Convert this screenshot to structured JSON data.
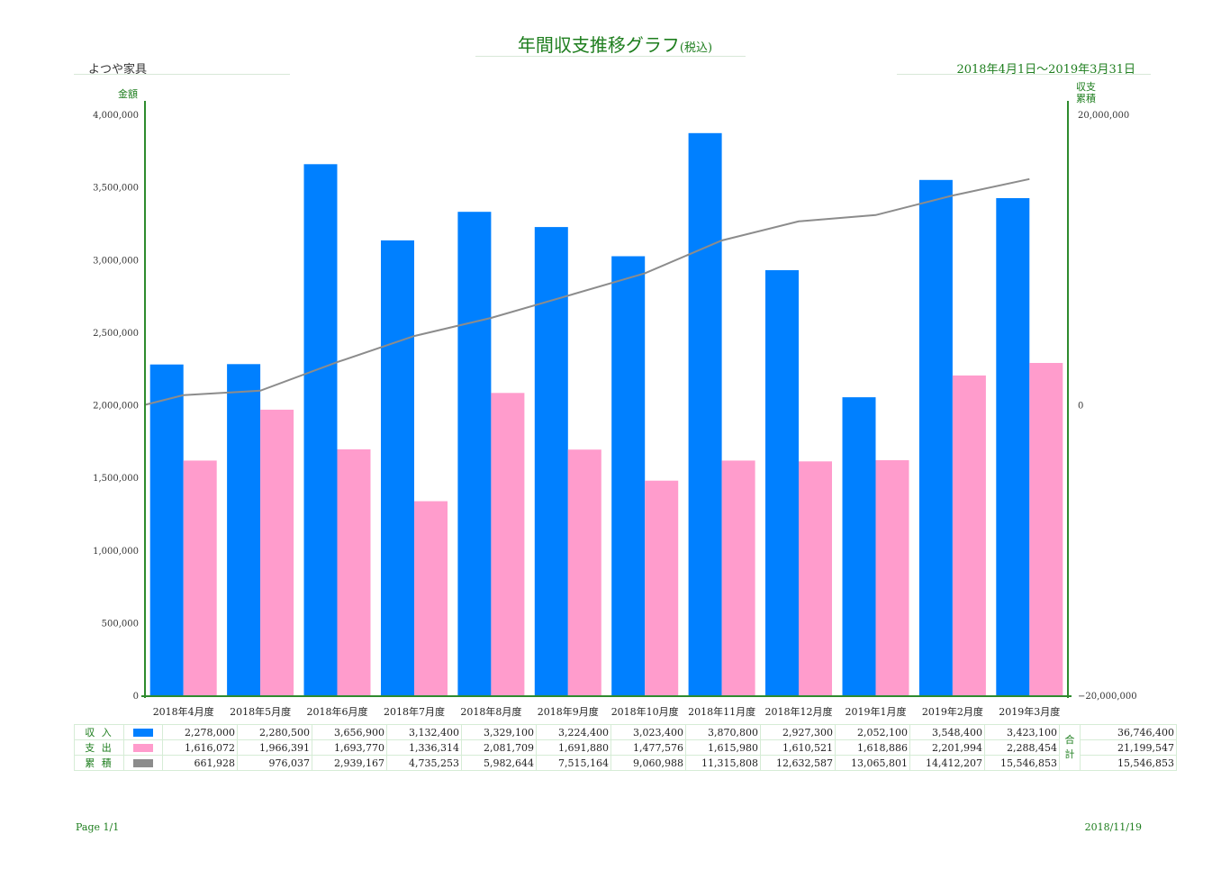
{
  "header": {
    "title": "年間収支推移グラフ",
    "title_sub": "(税込)",
    "company": "よつや家具",
    "period": "2018年4月1日～2019年3月31日"
  },
  "footer": {
    "page": "Page 1/1",
    "date": "2018/11/19"
  },
  "colors": {
    "income": "#0080ff",
    "expense": "#ff9ccc",
    "cumulative": "#8c8c8c",
    "axis": "#2e8b2e"
  },
  "chart_data": {
    "type": "bar",
    "title": "年間収支推移グラフ",
    "ylabel": "金額",
    "y2label": [
      "収支",
      "累積"
    ],
    "ylim": [
      0,
      4000000
    ],
    "y2lim": [
      -20000000,
      20000000
    ],
    "yticks": [
      "0",
      "500,000",
      "1,000,000",
      "1,500,000",
      "2,000,000",
      "2,500,000",
      "3,000,000",
      "3,500,000",
      "4,000,000"
    ],
    "y2ticks": [
      "−20,000,000",
      "0",
      "20,000,000"
    ],
    "categories": [
      "2018年4月度",
      "2018年5月度",
      "2018年6月度",
      "2018年7月度",
      "2018年8月度",
      "2018年9月度",
      "2018年10月度",
      "2018年11月度",
      "2018年12月度",
      "2019年1月度",
      "2019年2月度",
      "2019年3月度"
    ],
    "series": [
      {
        "name": "収入",
        "values": [
          2278000,
          2280500,
          3656900,
          3132400,
          3329100,
          3224400,
          3023400,
          3870800,
          2927300,
          2052100,
          3548400,
          3423100
        ]
      },
      {
        "name": "支出",
        "values": [
          1616072,
          1966391,
          1693770,
          1336314,
          2081709,
          1691880,
          1477576,
          1615980,
          1610521,
          1618886,
          2201994,
          2288454
        ]
      },
      {
        "name": "累積",
        "values": [
          661928,
          976037,
          2939167,
          4735253,
          5982644,
          7515164,
          9060988,
          11315808,
          12632587,
          13065801,
          14412207,
          15546853
        ]
      }
    ],
    "legend": "bottom-table",
    "grid": false
  },
  "table": {
    "rows": [
      {
        "label": "収 入",
        "color": "#0080ff",
        "cells": [
          "2,278,000",
          "2,280,500",
          "3,656,900",
          "3,132,400",
          "3,329,100",
          "3,224,400",
          "3,023,400",
          "3,870,800",
          "2,927,300",
          "2,052,100",
          "3,548,400",
          "3,423,100"
        ],
        "total": "36,746,400"
      },
      {
        "label": "支 出",
        "color": "#ff9ccc",
        "cells": [
          "1,616,072",
          "1,966,391",
          "1,693,770",
          "1,336,314",
          "2,081,709",
          "1,691,880",
          "1,477,576",
          "1,615,980",
          "1,610,521",
          "1,618,886",
          "2,201,994",
          "2,288,454"
        ],
        "total": "21,199,547"
      },
      {
        "label": "累 積",
        "color": "#8c8c8c",
        "cells": [
          "661,928",
          "976,037",
          "2,939,167",
          "4,735,253",
          "5,982,644",
          "7,515,164",
          "9,060,988",
          "11,315,808",
          "12,632,587",
          "13,065,801",
          "14,412,207",
          "15,546,853"
        ],
        "total": "15,546,853"
      }
    ],
    "sum_label_1": "合",
    "sum_label_2": "計"
  }
}
